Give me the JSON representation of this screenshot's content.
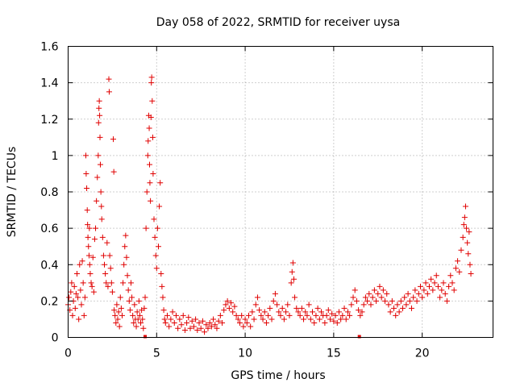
{
  "chart_data": {
    "type": "scatter",
    "title": "Day 058 of 2022, SRMTID for receiver uysa",
    "xlabel": "GPS time / hours",
    "ylabel": "SRMTID / TECUs",
    "xlim": [
      0,
      24
    ],
    "ylim": [
      0,
      1.6
    ],
    "xticks": [
      0,
      5,
      10,
      15,
      20
    ],
    "xtick_labels": [
      "0",
      "5",
      "10",
      "15",
      "20"
    ],
    "yticks": [
      0,
      0.2,
      0.4,
      0.6,
      0.8,
      1.0,
      1.2,
      1.4,
      1.6
    ],
    "ytick_labels": [
      "0",
      "0.2",
      "0.4",
      "0.6",
      "0.8",
      "1",
      "1.2",
      "1.4",
      "1.6"
    ],
    "grid": true,
    "marker": "+",
    "color": "#e00000",
    "series": [
      {
        "name": "SRMTID",
        "points": [
          [
            0.0,
            0.18
          ],
          [
            0.05,
            0.22
          ],
          [
            0.1,
            0.15
          ],
          [
            0.15,
            0.25
          ],
          [
            0.2,
            0.3
          ],
          [
            0.25,
            0.12
          ],
          [
            0.3,
            0.2
          ],
          [
            0.35,
            0.28
          ],
          [
            0.4,
            0.16
          ],
          [
            0.45,
            0.24
          ],
          [
            0.5,
            0.35
          ],
          [
            0.55,
            0.22
          ],
          [
            0.6,
            0.1
          ],
          [
            0.65,
            0.4
          ],
          [
            0.7,
            0.26
          ],
          [
            0.75,
            0.18
          ],
          [
            0.8,
            0.42
          ],
          [
            0.85,
            0.3
          ],
          [
            0.9,
            0.12
          ],
          [
            0.95,
            0.22
          ],
          [
            1.0,
            1.0
          ],
          [
            1.02,
            0.9
          ],
          [
            1.05,
            0.82
          ],
          [
            1.08,
            0.7
          ],
          [
            1.1,
            0.62
          ],
          [
            1.12,
            0.55
          ],
          [
            1.15,
            0.5
          ],
          [
            1.18,
            0.45
          ],
          [
            1.2,
            0.6
          ],
          [
            1.22,
            0.4
          ],
          [
            1.25,
            0.35
          ],
          [
            1.3,
            0.3
          ],
          [
            1.35,
            0.28
          ],
          [
            1.4,
            0.44
          ],
          [
            1.45,
            0.25
          ],
          [
            1.5,
            0.54
          ],
          [
            1.55,
            0.6
          ],
          [
            1.6,
            0.75
          ],
          [
            1.65,
            0.88
          ],
          [
            1.7,
            1.0
          ],
          [
            1.72,
            1.18
          ],
          [
            1.74,
            1.26
          ],
          [
            1.76,
            1.3
          ],
          [
            1.78,
            1.22
          ],
          [
            1.8,
            1.1
          ],
          [
            1.82,
            0.95
          ],
          [
            1.85,
            0.8
          ],
          [
            1.88,
            0.72
          ],
          [
            1.9,
            0.65
          ],
          [
            1.95,
            0.55
          ],
          [
            2.0,
            0.45
          ],
          [
            2.05,
            0.4
          ],
          [
            2.1,
            0.35
          ],
          [
            2.15,
            0.3
          ],
          [
            2.2,
            0.52
          ],
          [
            2.25,
            0.28
          ],
          [
            2.3,
            1.42
          ],
          [
            2.32,
            1.35
          ],
          [
            2.35,
            0.45
          ],
          [
            2.4,
            0.38
          ],
          [
            2.45,
            0.3
          ],
          [
            2.5,
            0.25
          ],
          [
            2.55,
            1.09
          ],
          [
            2.58,
            0.91
          ],
          [
            2.6,
            0.15
          ],
          [
            2.65,
            0.12
          ],
          [
            2.7,
            0.08
          ],
          [
            2.75,
            0.18
          ],
          [
            2.8,
            0.1
          ],
          [
            2.85,
            0.14
          ],
          [
            2.9,
            0.06
          ],
          [
            2.95,
            0.22
          ],
          [
            3.0,
            0.16
          ],
          [
            3.05,
            0.12
          ],
          [
            3.1,
            0.3
          ],
          [
            3.15,
            0.4
          ],
          [
            3.2,
            0.5
          ],
          [
            3.25,
            0.56
          ],
          [
            3.3,
            0.44
          ],
          [
            3.35,
            0.34
          ],
          [
            3.4,
            0.26
          ],
          [
            3.45,
            0.2
          ],
          [
            3.5,
            0.15
          ],
          [
            3.55,
            0.3
          ],
          [
            3.6,
            0.22
          ],
          [
            3.65,
            0.12
          ],
          [
            3.7,
            0.08
          ],
          [
            3.75,
            0.18
          ],
          [
            3.8,
            0.1
          ],
          [
            3.85,
            0.06
          ],
          [
            3.9,
            0.14
          ],
          [
            3.95,
            0.1
          ],
          [
            4.0,
            0.2
          ],
          [
            4.05,
            0.12
          ],
          [
            4.1,
            0.08
          ],
          [
            4.15,
            0.15
          ],
          [
            4.2,
            0.1
          ],
          [
            4.25,
            0.05
          ],
          [
            4.3,
            0.16
          ],
          [
            4.35,
            0.22
          ],
          [
            4.4,
            0.6
          ],
          [
            4.45,
            0.8
          ],
          [
            4.5,
            1.0
          ],
          [
            4.52,
            1.08
          ],
          [
            4.55,
            1.22
          ],
          [
            4.58,
            1.15
          ],
          [
            4.6,
            0.95
          ],
          [
            4.62,
            0.85
          ],
          [
            4.65,
            0.75
          ],
          [
            4.68,
            1.21
          ],
          [
            4.7,
            1.4
          ],
          [
            4.72,
            1.43
          ],
          [
            4.75,
            1.3
          ],
          [
            4.78,
            1.1
          ],
          [
            4.8,
            0.9
          ],
          [
            4.85,
            0.65
          ],
          [
            4.9,
            0.55
          ],
          [
            4.95,
            0.45
          ],
          [
            5.0,
            0.38
          ],
          [
            5.05,
            0.6
          ],
          [
            5.1,
            0.5
          ],
          [
            5.15,
            0.72
          ],
          [
            5.2,
            0.85
          ],
          [
            5.25,
            0.35
          ],
          [
            5.3,
            0.28
          ],
          [
            5.35,
            0.22
          ],
          [
            5.4,
            0.15
          ],
          [
            5.45,
            0.1
          ],
          [
            5.5,
            0.08
          ],
          [
            5.6,
            0.12
          ],
          [
            5.7,
            0.06
          ],
          [
            5.8,
            0.1
          ],
          [
            5.9,
            0.14
          ],
          [
            6.0,
            0.08
          ],
          [
            6.1,
            0.12
          ],
          [
            6.2,
            0.05
          ],
          [
            6.3,
            0.1
          ],
          [
            6.4,
            0.07
          ],
          [
            6.5,
            0.12
          ],
          [
            6.6,
            0.04
          ],
          [
            6.7,
            0.08
          ],
          [
            6.8,
            0.11
          ],
          [
            6.9,
            0.05
          ],
          [
            7.0,
            0.09
          ],
          [
            7.1,
            0.06
          ],
          [
            7.2,
            0.1
          ],
          [
            7.3,
            0.04
          ],
          [
            7.4,
            0.08
          ],
          [
            7.5,
            0.05
          ],
          [
            7.6,
            0.09
          ],
          [
            7.7,
            0.03
          ],
          [
            7.8,
            0.07
          ],
          [
            7.9,
            0.05
          ],
          [
            8.0,
            0.08
          ],
          [
            8.1,
            0.06
          ],
          [
            8.2,
            0.1
          ],
          [
            8.3,
            0.07
          ],
          [
            8.4,
            0.05
          ],
          [
            8.5,
            0.09
          ],
          [
            8.6,
            0.12
          ],
          [
            8.7,
            0.08
          ],
          [
            8.8,
            0.15
          ],
          [
            8.9,
            0.18
          ],
          [
            9.0,
            0.2
          ],
          [
            9.1,
            0.16
          ],
          [
            9.2,
            0.19
          ],
          [
            9.3,
            0.14
          ],
          [
            9.4,
            0.17
          ],
          [
            9.5,
            0.12
          ],
          [
            9.6,
            0.1
          ],
          [
            9.7,
            0.08
          ],
          [
            9.8,
            0.12
          ],
          [
            9.9,
            0.06
          ],
          [
            10.0,
            0.1
          ],
          [
            10.1,
            0.08
          ],
          [
            10.2,
            0.12
          ],
          [
            10.3,
            0.06
          ],
          [
            10.4,
            0.14
          ],
          [
            10.5,
            0.1
          ],
          [
            10.6,
            0.18
          ],
          [
            10.7,
            0.22
          ],
          [
            10.8,
            0.15
          ],
          [
            10.9,
            0.12
          ],
          [
            11.0,
            0.1
          ],
          [
            11.1,
            0.14
          ],
          [
            11.2,
            0.08
          ],
          [
            11.3,
            0.12
          ],
          [
            11.4,
            0.16
          ],
          [
            11.5,
            0.1
          ],
          [
            11.6,
            0.2
          ],
          [
            11.7,
            0.24
          ],
          [
            11.8,
            0.18
          ],
          [
            11.9,
            0.14
          ],
          [
            12.0,
            0.12
          ],
          [
            12.1,
            0.16
          ],
          [
            12.2,
            0.1
          ],
          [
            12.3,
            0.14
          ],
          [
            12.4,
            0.18
          ],
          [
            12.5,
            0.12
          ],
          [
            12.6,
            0.3
          ],
          [
            12.65,
            0.36
          ],
          [
            12.7,
            0.41
          ],
          [
            12.75,
            0.32
          ],
          [
            12.8,
            0.22
          ],
          [
            12.9,
            0.16
          ],
          [
            13.0,
            0.14
          ],
          [
            13.1,
            0.12
          ],
          [
            13.2,
            0.16
          ],
          [
            13.3,
            0.1
          ],
          [
            13.4,
            0.14
          ],
          [
            13.5,
            0.12
          ],
          [
            13.6,
            0.18
          ],
          [
            13.7,
            0.1
          ],
          [
            13.8,
            0.14
          ],
          [
            13.9,
            0.08
          ],
          [
            14.0,
            0.12
          ],
          [
            14.1,
            0.16
          ],
          [
            14.2,
            0.1
          ],
          [
            14.3,
            0.14
          ],
          [
            14.4,
            0.12
          ],
          [
            14.5,
            0.08
          ],
          [
            14.6,
            0.12
          ],
          [
            14.7,
            0.15
          ],
          [
            14.8,
            0.1
          ],
          [
            14.9,
            0.13
          ],
          [
            15.0,
            0.09
          ],
          [
            15.1,
            0.12
          ],
          [
            15.2,
            0.08
          ],
          [
            15.3,
            0.14
          ],
          [
            15.4,
            0.1
          ],
          [
            15.5,
            0.12
          ],
          [
            15.6,
            0.16
          ],
          [
            15.7,
            0.1
          ],
          [
            15.8,
            0.14
          ],
          [
            15.9,
            0.12
          ],
          [
            16.0,
            0.18
          ],
          [
            16.1,
            0.22
          ],
          [
            16.2,
            0.26
          ],
          [
            16.3,
            0.2
          ],
          [
            16.4,
            0.15
          ],
          [
            16.5,
            0.12
          ],
          [
            16.6,
            0.14
          ],
          [
            16.7,
            0.18
          ],
          [
            16.8,
            0.22
          ],
          [
            16.9,
            0.2
          ],
          [
            17.0,
            0.24
          ],
          [
            17.1,
            0.18
          ],
          [
            17.2,
            0.22
          ],
          [
            17.3,
            0.26
          ],
          [
            17.4,
            0.2
          ],
          [
            17.5,
            0.24
          ],
          [
            17.6,
            0.28
          ],
          [
            17.7,
            0.22
          ],
          [
            17.8,
            0.26
          ],
          [
            17.9,
            0.2
          ],
          [
            18.0,
            0.24
          ],
          [
            18.1,
            0.18
          ],
          [
            18.2,
            0.14
          ],
          [
            18.3,
            0.2
          ],
          [
            18.4,
            0.16
          ],
          [
            18.5,
            0.12
          ],
          [
            18.6,
            0.18
          ],
          [
            18.7,
            0.14
          ],
          [
            18.8,
            0.2
          ],
          [
            18.9,
            0.16
          ],
          [
            19.0,
            0.22
          ],
          [
            19.1,
            0.18
          ],
          [
            19.2,
            0.24
          ],
          [
            19.3,
            0.2
          ],
          [
            19.4,
            0.16
          ],
          [
            19.5,
            0.22
          ],
          [
            19.6,
            0.26
          ],
          [
            19.7,
            0.2
          ],
          [
            19.8,
            0.24
          ],
          [
            19.9,
            0.28
          ],
          [
            20.0,
            0.22
          ],
          [
            20.1,
            0.26
          ],
          [
            20.2,
            0.3
          ],
          [
            20.3,
            0.24
          ],
          [
            20.4,
            0.28
          ],
          [
            20.5,
            0.32
          ],
          [
            20.6,
            0.26
          ],
          [
            20.7,
            0.3
          ],
          [
            20.8,
            0.34
          ],
          [
            20.9,
            0.28
          ],
          [
            21.0,
            0.22
          ],
          [
            21.1,
            0.26
          ],
          [
            21.2,
            0.3
          ],
          [
            21.3,
            0.24
          ],
          [
            21.4,
            0.2
          ],
          [
            21.5,
            0.28
          ],
          [
            21.6,
            0.34
          ],
          [
            21.7,
            0.3
          ],
          [
            21.8,
            0.26
          ],
          [
            21.9,
            0.38
          ],
          [
            22.0,
            0.42
          ],
          [
            22.1,
            0.36
          ],
          [
            22.2,
            0.48
          ],
          [
            22.3,
            0.55
          ],
          [
            22.35,
            0.62
          ],
          [
            22.4,
            0.66
          ],
          [
            22.45,
            0.72
          ],
          [
            22.5,
            0.6
          ],
          [
            22.55,
            0.52
          ],
          [
            22.6,
            0.46
          ],
          [
            22.65,
            0.58
          ],
          [
            22.7,
            0.4
          ],
          [
            22.75,
            0.35
          ]
        ]
      }
    ],
    "gap_markers_x": [
      4.35,
      16.45
    ]
  }
}
